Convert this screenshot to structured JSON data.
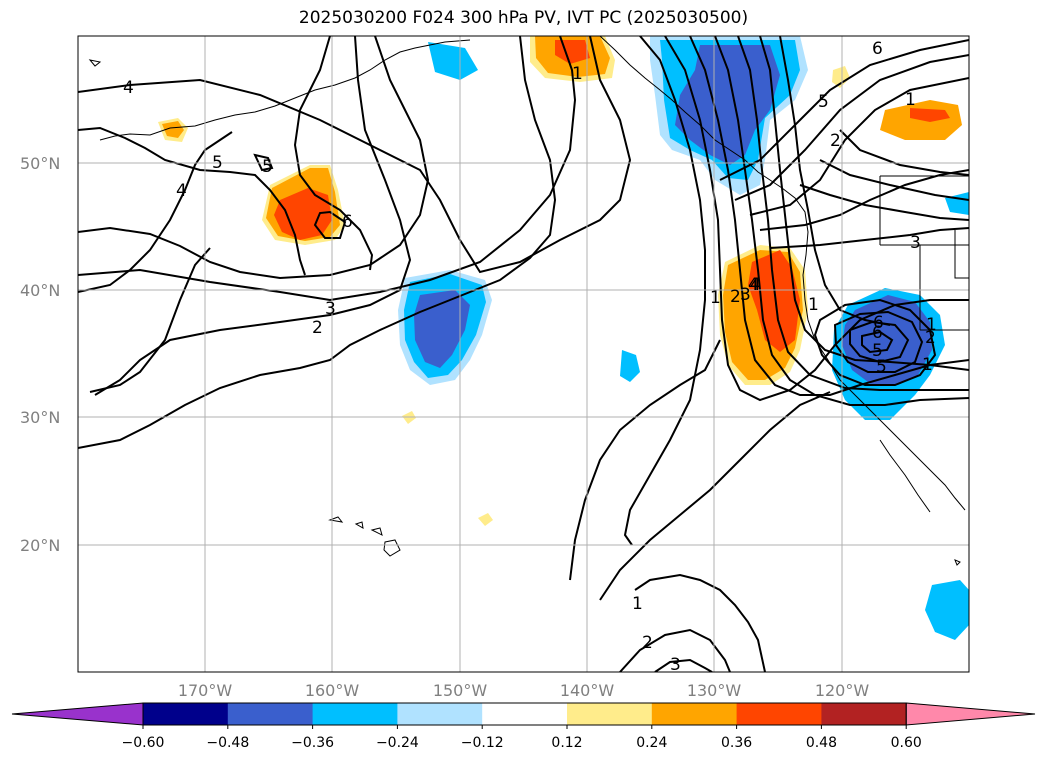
{
  "title": "2025030200 F024 300 hPa PV, IVT PC (2025030500)",
  "lat_labels": [
    "50°N",
    "40°N",
    "30°N",
    "20°N"
  ],
  "lon_labels": [
    "170°W",
    "160°W",
    "150°W",
    "140°W",
    "130°W",
    "120°W"
  ],
  "colorbar": {
    "colors": [
      "#9932cc",
      "#00008b",
      "#3a5fcd",
      "#00bfff",
      "#b0e2ff",
      "#ffffff",
      "#ffec8b",
      "#ffa500",
      "#ff4500",
      "#b22222",
      "#ff88aa"
    ],
    "tick_labels": [
      "−0.60",
      "−0.48",
      "−0.36",
      "−0.24",
      "−0.12",
      "0.12",
      "0.24",
      "0.36",
      "0.48",
      "0.60"
    ]
  },
  "contour_labels": [
    "4",
    "5",
    "5",
    "4",
    "6",
    "3",
    "2",
    "1",
    "1",
    "2",
    "3",
    "4",
    "5",
    "6",
    "1",
    "2",
    "3",
    "1",
    "6",
    "5",
    "1",
    "2",
    "1",
    "6",
    "5",
    "4",
    "1",
    "2",
    "3"
  ]
}
